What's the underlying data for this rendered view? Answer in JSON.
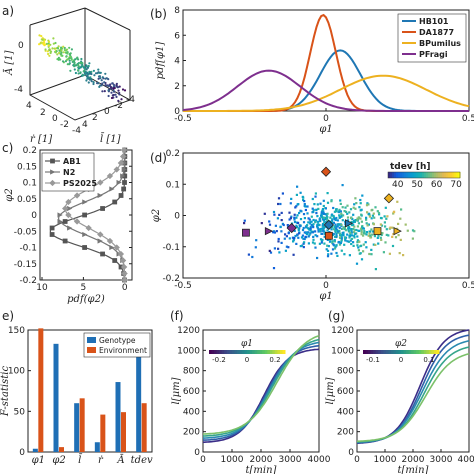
{
  "panels": {
    "a": {
      "label": "a)",
      "axes": {
        "z": "Ā [1]",
        "x": "ṙ [1]",
        "y": "l̄ [1]"
      },
      "ticks_x": [
        "4",
        "2",
        "0",
        "-2",
        "-4"
      ],
      "ticks_y": [
        "4",
        "2",
        "0",
        "-2",
        "-4"
      ],
      "ticks_z": [
        "0",
        "-4"
      ]
    },
    "b": {
      "label": "(b)"
    },
    "c": {
      "label": "c)"
    },
    "d": {
      "label": "(d)"
    },
    "e": {
      "label": "e)"
    },
    "f": {
      "label": "(f)"
    },
    "g": {
      "label": "(g)"
    }
  },
  "colors": {
    "blue": "#1f77b4",
    "red": "#d95319",
    "yellow": "#edb120",
    "purple": "#7e2f8e",
    "genotype": "#1f6fb5",
    "environment": "#d95319"
  },
  "chart_data": [
    {
      "id": "b",
      "type": "line",
      "xlabel": "φ1",
      "ylabel": "pdf[φ1]",
      "xlim": [
        -0.5,
        0.5
      ],
      "ylim": [
        0,
        8
      ],
      "xticks": [
        "-0.5",
        "0",
        "0.5"
      ],
      "yticks": [
        "0",
        "2",
        "4",
        "6",
        "8"
      ],
      "legend": "top-right",
      "series": [
        {
          "name": "HB101",
          "color": "#1f77b4",
          "mu": 0.05,
          "sigma": 0.07,
          "amp": 4.8
        },
        {
          "name": "DA1877",
          "color": "#d95319",
          "mu": -0.01,
          "sigma": 0.045,
          "amp": 7.6
        },
        {
          "name": "BPumilus",
          "color": "#edb120",
          "mu": 0.2,
          "sigma": 0.15,
          "amp": 2.8
        },
        {
          "name": "PFragi",
          "color": "#7e2f8e",
          "mu": -0.2,
          "sigma": 0.11,
          "amp": 3.2
        }
      ]
    },
    {
      "id": "c",
      "type": "line",
      "xlabel": "pdf(φ2)",
      "ylabel": "φ2",
      "xlim": [
        10,
        0
      ],
      "ylim": [
        -0.2,
        0.2
      ],
      "xticks": [
        "10",
        "5",
        "0"
      ],
      "yticks": [
        "-0.2",
        "-0.15",
        "-0.1",
        "-0.05",
        "0",
        "0.05",
        "0.1",
        "0.15",
        "0.2"
      ],
      "legend": "top-left",
      "series": [
        {
          "name": "AB1",
          "mu": -0.05,
          "sigma": 0.045,
          "amp": 9.0,
          "marker": "square"
        },
        {
          "name": "N2",
          "mu": -0.01,
          "sigma": 0.05,
          "amp": 8.0,
          "marker": "triangle"
        },
        {
          "name": "PS2025",
          "mu": 0.02,
          "sigma": 0.06,
          "amp": 7.2,
          "marker": "diamond"
        }
      ]
    },
    {
      "id": "d",
      "type": "scatter",
      "xlabel": "φ1",
      "ylabel": "φ2",
      "xlim": [
        -0.5,
        0.5
      ],
      "ylim": [
        -0.2,
        0.2
      ],
      "xticks": [
        "-0.5",
        "0",
        "0.5"
      ],
      "yticks": [
        "-0.2",
        "-0.1",
        "0",
        "0.1",
        "0.2"
      ],
      "colorbar": {
        "label": "tdev [h]",
        "ticks": [
          "40",
          "50",
          "60",
          "70"
        ],
        "range": [
          35,
          72
        ]
      },
      "highlights": [
        {
          "x": 0.0,
          "y": 0.14,
          "marker": "diamond",
          "color": "#d95319"
        },
        {
          "x": 0.22,
          "y": 0.055,
          "marker": "diamond",
          "color": "#edb120"
        },
        {
          "x": 0.25,
          "y": -0.05,
          "marker": "triangle",
          "color": "#edb120"
        },
        {
          "x": 0.18,
          "y": -0.05,
          "marker": "square",
          "color": "#edb120"
        },
        {
          "x": 0.08,
          "y": -0.025,
          "marker": "triangle",
          "color": "#1f77b4"
        },
        {
          "x": 0.01,
          "y": -0.03,
          "marker": "diamond",
          "color": "#1f77b4"
        },
        {
          "x": 0.01,
          "y": -0.065,
          "marker": "square",
          "color": "#d95319"
        },
        {
          "x": -0.12,
          "y": -0.04,
          "marker": "diamond",
          "color": "#7e2f8e"
        },
        {
          "x": -0.2,
          "y": -0.05,
          "marker": "triangle",
          "color": "#7e2f8e"
        },
        {
          "x": -0.28,
          "y": -0.055,
          "marker": "square",
          "color": "#7e2f8e"
        }
      ]
    },
    {
      "id": "e",
      "type": "bar",
      "ylabel": "F-statistic",
      "ylim": [
        0,
        150
      ],
      "yticks": [
        "0",
        "50",
        "100",
        "150"
      ],
      "categories": [
        "φ1",
        "φ2",
        "l̄",
        "ṙ",
        "Ā",
        "tdev"
      ],
      "legend": "top-right",
      "series": [
        {
          "name": "Genotype",
          "values": [
            4,
            133,
            60,
            12,
            86,
            123
          ]
        },
        {
          "name": "Environment",
          "values": [
            152,
            6,
            66,
            46,
            49,
            60
          ]
        }
      ]
    },
    {
      "id": "f",
      "type": "line",
      "xlabel": "t[min]",
      "ylabel": "l[μm]",
      "xlim": [
        0,
        4000
      ],
      "ylim": [
        0,
        1200
      ],
      "xticks": [
        "0",
        "1000",
        "2000",
        "3000",
        "4000"
      ],
      "yticks": [
        "0",
        "200",
        "400",
        "600",
        "800",
        "1000",
        "1200"
      ],
      "colorbar": {
        "label": "φ1",
        "ticks": [
          "-0.2",
          "0",
          "0.2"
        ]
      },
      "curves": [
        {
          "L0": 90,
          "Lmax": 1020,
          "k": 0.0011,
          "t0": 2100,
          "color": "#3b2d88"
        },
        {
          "L0": 110,
          "Lmax": 1060,
          "k": 0.00105,
          "t0": 2200,
          "color": "#2f5fa8"
        },
        {
          "L0": 130,
          "Lmax": 1100,
          "k": 0.001,
          "t0": 2300,
          "color": "#2a8ab0"
        },
        {
          "L0": 150,
          "Lmax": 1140,
          "k": 0.00095,
          "t0": 2400,
          "color": "#35a58a"
        },
        {
          "L0": 170,
          "Lmax": 1200,
          "k": 0.0009,
          "t0": 2550,
          "color": "#7cc16a"
        }
      ]
    },
    {
      "id": "g",
      "type": "line",
      "xlabel": "t[min]",
      "ylabel": "l[μm]",
      "xlim": [
        0,
        4000
      ],
      "ylim": [
        0,
        1200
      ],
      "xticks": [
        "0",
        "1000",
        "2000",
        "3000",
        "4000"
      ],
      "yticks": [
        "0",
        "200",
        "400",
        "600",
        "800",
        "1000",
        "1200"
      ],
      "colorbar": {
        "label": "φ2",
        "ticks": [
          "-0.1",
          "0",
          "0.1"
        ]
      },
      "curves": [
        {
          "L0": 80,
          "Lmax": 1220,
          "k": 0.00105,
          "t0": 2250,
          "color": "#3b2d88"
        },
        {
          "L0": 85,
          "Lmax": 1170,
          "k": 0.00105,
          "t0": 2300,
          "color": "#2f5fa8"
        },
        {
          "L0": 90,
          "Lmax": 1120,
          "k": 0.001,
          "t0": 2350,
          "color": "#2a8ab0"
        },
        {
          "L0": 95,
          "Lmax": 1060,
          "k": 0.001,
          "t0": 2400,
          "color": "#35a58a"
        },
        {
          "L0": 100,
          "Lmax": 1000,
          "k": 0.00095,
          "t0": 2450,
          "color": "#7cc16a"
        }
      ]
    }
  ]
}
